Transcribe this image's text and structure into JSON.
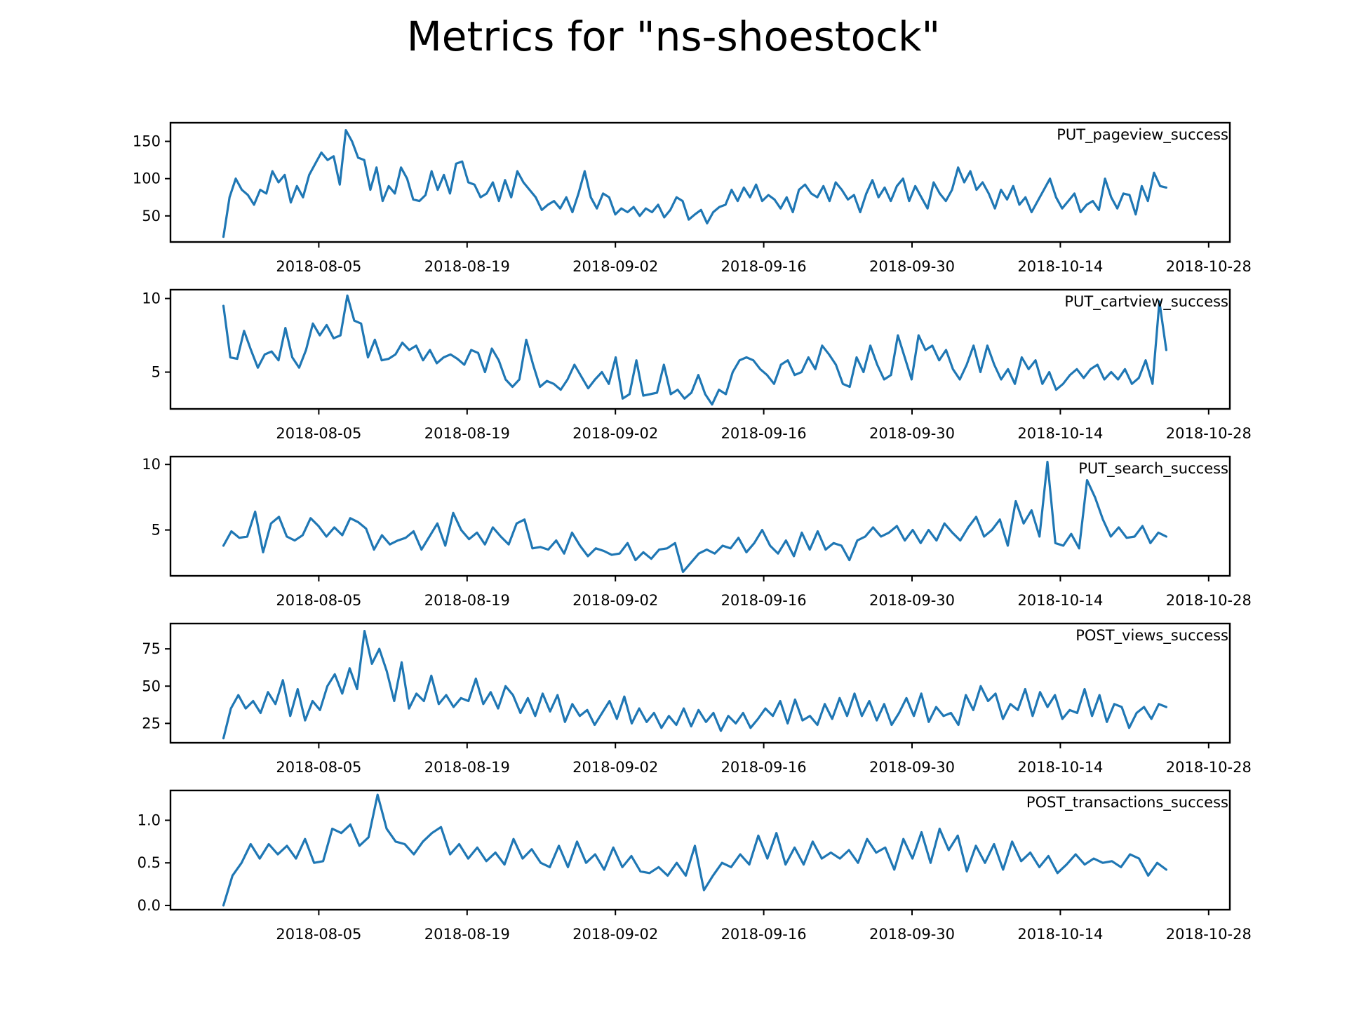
{
  "title": "Metrics for \"ns-shoestock\"",
  "line_color": "#1f77b4",
  "x_tick_labels": [
    "2018-08-05",
    "2018-08-19",
    "2018-09-02",
    "2018-09-16",
    "2018-09-30",
    "2018-10-14",
    "2018-10-28"
  ],
  "chart_data": [
    {
      "type": "line",
      "series_name": "PUT_pageview_success",
      "x_start": "2018-07-27",
      "x_end": "2018-10-24",
      "xlim": [
        "2018-07-22",
        "2018-10-30"
      ],
      "ylim": [
        15,
        175
      ],
      "yticks": [
        50,
        100,
        150
      ],
      "ytick_labels": [
        "50",
        "100",
        "150"
      ],
      "values": [
        22,
        75,
        100,
        85,
        78,
        65,
        85,
        80,
        110,
        95,
        105,
        68,
        90,
        75,
        105,
        120,
        135,
        125,
        130,
        92,
        165,
        150,
        128,
        125,
        85,
        115,
        70,
        90,
        80,
        115,
        100,
        72,
        70,
        78,
        110,
        85,
        105,
        80,
        120,
        123,
        95,
        92,
        75,
        80,
        95,
        70,
        98,
        75,
        110,
        95,
        85,
        75,
        58,
        65,
        70,
        60,
        75,
        55,
        80,
        110,
        75,
        60,
        80,
        75,
        52,
        60,
        55,
        62,
        50,
        60,
        55,
        65,
        48,
        58,
        75,
        70,
        45,
        52,
        58,
        40,
        55,
        62,
        65,
        85,
        70,
        88,
        75,
        92,
        70,
        78,
        72,
        60,
        75,
        55,
        85,
        92,
        80,
        75,
        90,
        70,
        95,
        85,
        72,
        78,
        55,
        80,
        98,
        75,
        88,
        70,
        90,
        100,
        70,
        90,
        75,
        60,
        95,
        80,
        70,
        85,
        115,
        95,
        110,
        85,
        95,
        80,
        60,
        85,
        72,
        90,
        65,
        75,
        55,
        70,
        85,
        100,
        75,
        60,
        70,
        80,
        55,
        65,
        70,
        58,
        100,
        75,
        60,
        80,
        78,
        52,
        90,
        70,
        108,
        90,
        88
      ]
    },
    {
      "type": "line",
      "series_name": "PUT_cartview_success",
      "x_start": "2018-07-27",
      "x_end": "2018-10-24",
      "xlim": [
        "2018-07-22",
        "2018-10-30"
      ],
      "ylim": [
        2.5,
        10.6
      ],
      "yticks": [
        5,
        10
      ],
      "ytick_labels": [
        "5",
        "10"
      ],
      "values": [
        9.5,
        6.0,
        5.9,
        7.8,
        6.5,
        5.3,
        6.2,
        6.4,
        5.8,
        8.0,
        6.0,
        5.3,
        6.5,
        8.3,
        7.5,
        8.2,
        7.3,
        7.5,
        10.2,
        8.5,
        8.3,
        6.0,
        7.2,
        5.8,
        5.9,
        6.2,
        7.0,
        6.5,
        6.8,
        5.8,
        6.5,
        5.6,
        6.0,
        6.2,
        5.9,
        5.5,
        6.5,
        6.3,
        5.0,
        6.6,
        5.8,
        4.5,
        4.0,
        4.5,
        7.2,
        5.5,
        4.0,
        4.4,
        4.2,
        3.8,
        4.5,
        5.5,
        4.7,
        3.9,
        4.5,
        5.0,
        4.2,
        6.0,
        3.2,
        3.5,
        5.8,
        3.4,
        3.5,
        3.6,
        5.5,
        3.5,
        3.8,
        3.2,
        3.6,
        4.8,
        3.5,
        2.8,
        3.8,
        3.5,
        5.0,
        5.8,
        6.0,
        5.8,
        5.2,
        4.8,
        4.2,
        5.5,
        5.8,
        4.8,
        5.0,
        6.0,
        5.2,
        6.8,
        6.2,
        5.5,
        4.2,
        4.0,
        6.0,
        5.0,
        6.8,
        5.5,
        4.5,
        4.8,
        7.5,
        6.0,
        4.5,
        7.5,
        6.5,
        6.8,
        5.8,
        6.5,
        5.2,
        4.5,
        5.5,
        6.8,
        5.0,
        6.8,
        5.5,
        4.5,
        5.2,
        4.2,
        6.0,
        5.2,
        5.8,
        4.2,
        5.0,
        3.8,
        4.2,
        4.8,
        5.2,
        4.6,
        5.2,
        5.5,
        4.5,
        5.0,
        4.5,
        5.2,
        4.2,
        4.6,
        5.8,
        4.2,
        9.8,
        6.5
      ],
      "values_note": ""
    },
    {
      "type": "line",
      "series_name": "PUT_search_success",
      "x_start": "2018-07-27",
      "x_end": "2018-10-24",
      "xlim": [
        "2018-07-22",
        "2018-10-30"
      ],
      "ylim": [
        1.5,
        10.6
      ],
      "yticks": [
        5,
        10
      ],
      "ytick_labels": [
        "5",
        "10"
      ],
      "values": [
        3.8,
        4.9,
        4.4,
        4.5,
        6.4,
        3.3,
        5.5,
        6.0,
        4.5,
        4.2,
        4.6,
        5.9,
        5.3,
        4.5,
        5.2,
        4.6,
        5.9,
        5.6,
        5.1,
        3.5,
        4.6,
        3.9,
        4.2,
        4.4,
        4.9,
        3.5,
        4.5,
        5.5,
        3.8,
        6.3,
        5.0,
        4.3,
        4.8,
        3.9,
        5.2,
        4.5,
        3.9,
        5.5,
        5.8,
        3.6,
        3.7,
        3.5,
        4.2,
        3.2,
        4.8,
        3.8,
        3.0,
        3.6,
        3.4,
        3.1,
        3.2,
        4.0,
        2.7,
        3.3,
        2.8,
        3.5,
        3.6,
        4.0,
        1.8,
        2.5,
        3.2,
        3.5,
        3.2,
        3.8,
        3.6,
        4.4,
        3.3,
        4.0,
        5.0,
        3.8,
        3.2,
        4.2,
        3.0,
        4.8,
        3.5,
        4.9,
        3.5,
        4.0,
        3.8,
        2.7,
        4.2,
        4.5,
        5.2,
        4.5,
        4.8,
        5.3,
        4.2,
        5.0,
        4.0,
        5.0,
        4.2,
        5.5,
        4.8,
        4.2,
        5.2,
        6.0,
        4.5,
        5.0,
        5.8,
        3.8,
        7.2,
        5.5,
        6.5,
        4.5,
        10.2,
        4.0,
        3.8,
        4.7,
        3.6,
        8.8,
        7.5,
        5.8,
        4.5,
        5.2,
        4.4,
        4.5,
        5.3,
        4.0,
        4.8,
        4.5
      ],
      "values_note": ""
    },
    {
      "type": "line",
      "series_name": "POST_views_success",
      "x_start": "2018-07-27",
      "x_end": "2018-10-24",
      "xlim": [
        "2018-07-22",
        "2018-10-30"
      ],
      "ylim": [
        12,
        92
      ],
      "yticks": [
        25,
        50,
        75
      ],
      "ytick_labels": [
        "25",
        "50",
        "75"
      ],
      "values": [
        15,
        35,
        44,
        35,
        40,
        32,
        46,
        38,
        54,
        30,
        48,
        27,
        40,
        34,
        50,
        58,
        45,
        62,
        48,
        87,
        65,
        75,
        60,
        40,
        66,
        35,
        45,
        40,
        57,
        38,
        44,
        36,
        42,
        40,
        55,
        38,
        46,
        35,
        50,
        44,
        32,
        42,
        30,
        45,
        33,
        44,
        26,
        38,
        30,
        34,
        24,
        32,
        40,
        28,
        43,
        25,
        35,
        26,
        32,
        22,
        30,
        24,
        35,
        23,
        34,
        26,
        32,
        20,
        30,
        25,
        32,
        22,
        28,
        35,
        30,
        40,
        25,
        41,
        27,
        30,
        24,
        38,
        28,
        42,
        30,
        45,
        30,
        40,
        27,
        38,
        24,
        32,
        42,
        30,
        45,
        26,
        36,
        30,
        32,
        24,
        44,
        34,
        50,
        40,
        45,
        28,
        38,
        34,
        48,
        30,
        46,
        36,
        44,
        28,
        34,
        32,
        48,
        30,
        44,
        26,
        38,
        36,
        22,
        32,
        36,
        28,
        38,
        36
      ],
      "values_note": ""
    },
    {
      "type": "line",
      "series_name": "POST_transactions_success",
      "x_start": "2018-07-27",
      "x_end": "2018-10-24",
      "xlim": [
        "2018-07-22",
        "2018-10-30"
      ],
      "ylim": [
        -0.05,
        1.35
      ],
      "yticks": [
        0.0,
        0.5,
        1.0
      ],
      "ytick_labels": [
        "0.0",
        "0.5",
        "1.0"
      ],
      "values": [
        0.0,
        0.35,
        0.5,
        0.72,
        0.55,
        0.72,
        0.6,
        0.7,
        0.55,
        0.78,
        0.5,
        0.52,
        0.9,
        0.85,
        0.95,
        0.7,
        0.8,
        1.3,
        0.9,
        0.75,
        0.72,
        0.6,
        0.75,
        0.85,
        0.92,
        0.6,
        0.72,
        0.55,
        0.68,
        0.52,
        0.62,
        0.48,
        0.78,
        0.55,
        0.66,
        0.5,
        0.45,
        0.7,
        0.45,
        0.75,
        0.5,
        0.6,
        0.42,
        0.68,
        0.45,
        0.58,
        0.4,
        0.38,
        0.45,
        0.35,
        0.5,
        0.35,
        0.7,
        0.18,
        0.35,
        0.5,
        0.45,
        0.6,
        0.48,
        0.82,
        0.55,
        0.85,
        0.48,
        0.68,
        0.48,
        0.75,
        0.55,
        0.62,
        0.55,
        0.65,
        0.5,
        0.78,
        0.62,
        0.68,
        0.42,
        0.78,
        0.55,
        0.86,
        0.5,
        0.9,
        0.65,
        0.82,
        0.4,
        0.7,
        0.5,
        0.72,
        0.42,
        0.75,
        0.52,
        0.62,
        0.45,
        0.58,
        0.38,
        0.48,
        0.6,
        0.48,
        0.55,
        0.5,
        0.52,
        0.45,
        0.6,
        0.55,
        0.35,
        0.5,
        0.42
      ],
      "values_note": ""
    }
  ]
}
